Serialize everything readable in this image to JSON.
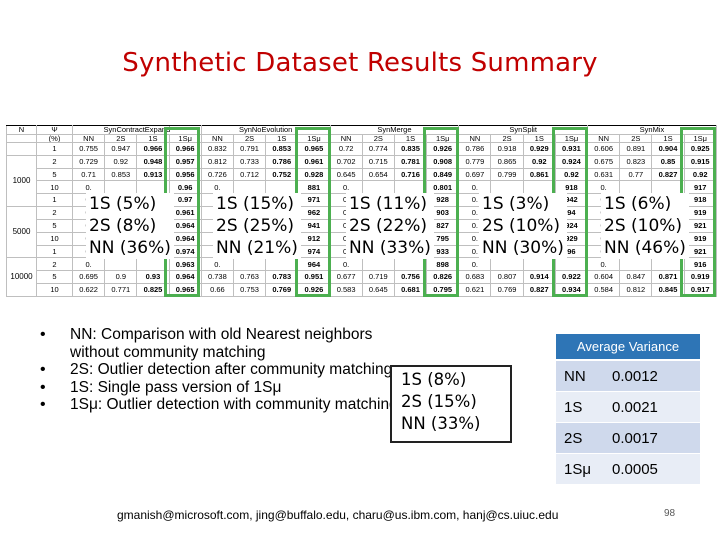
{
  "title": "Synthetic Dataset Results Summary",
  "table": {
    "n_header": "N",
    "psi_header": "Ψ",
    "psi_unit": "(%)",
    "datasets": [
      "SynContractExpand",
      "SynNoEvolution",
      "SynMerge",
      "SynSplit",
      "SynMix"
    ],
    "methods": [
      "NN",
      "2S",
      "1S",
      "1Sμ"
    ],
    "rows": [
      {
        "n": "",
        "psi": "1",
        "cells": [
          "0.755",
          "0.947",
          "0.966",
          "0.966",
          "0.832",
          "0.791",
          "0.853",
          "0.965",
          "0.72",
          "0.774",
          "0.835",
          "0.926",
          "0.786",
          "0.918",
          "0.929",
          "0.931",
          "0.606",
          "0.891",
          "0.904",
          "0.925"
        ]
      },
      {
        "n": "1000",
        "psi": "2",
        "cells": [
          "0.729",
          "0.92",
          "0.948",
          "0.957",
          "0.812",
          "0.733",
          "0.786",
          "0.961",
          "0.702",
          "0.715",
          "0.781",
          "0.908",
          "0.779",
          "0.865",
          "0.92",
          "0.924",
          "0.675",
          "0.823",
          "0.85",
          "0.915"
        ]
      },
      {
        "n": "",
        "psi": "5",
        "cells": [
          "0.71",
          "0.853",
          "0.913",
          "0.956",
          "0.726",
          "0.712",
          "0.752",
          "0.928",
          "0.645",
          "0.654",
          "0.716",
          "0.849",
          "0.697",
          "0.799",
          "0.861",
          "0.92",
          "0.631",
          "0.77",
          "0.827",
          "0.92"
        ]
      },
      {
        "n": "",
        "psi": "10",
        "cells": [
          "0.",
          "",
          "",
          "0.96",
          "0.",
          "",
          "",
          "881",
          "0.",
          "",
          "",
          "0.801",
          "0.",
          "",
          "",
          "918",
          "0.",
          "",
          "",
          "917"
        ]
      },
      {
        "n": "",
        "psi": "1",
        "cells": [
          "0.",
          "",
          "",
          "0.97",
          "0.",
          "",
          "",
          "971",
          "0.",
          "",
          "",
          "928",
          "0.",
          "",
          "",
          "942",
          "0.",
          "",
          "",
          "918"
        ]
      },
      {
        "n": "5000",
        "psi": "2",
        "cells": [
          "0.",
          "",
          "",
          "0.961",
          "0.",
          "",
          "",
          "962",
          "0.",
          "",
          "",
          "903",
          "0.",
          "",
          "",
          "94",
          "0.",
          "",
          "",
          "919"
        ]
      },
      {
        "n": "",
        "psi": "5",
        "cells": [
          "0.",
          "",
          "",
          "0.964",
          "0.",
          "",
          "",
          "941",
          "0.",
          "",
          "",
          "827",
          "0.",
          "",
          "",
          "924",
          "0.",
          "",
          "",
          "921"
        ]
      },
      {
        "n": "",
        "psi": "10",
        "cells": [
          "0.",
          "",
          "",
          "0.964",
          "0.",
          "",
          "",
          "912",
          "0.",
          "",
          "",
          "795",
          "0.",
          "",
          "",
          "929",
          "0.",
          "",
          "",
          "919"
        ]
      },
      {
        "n": "",
        "psi": "1",
        "cells": [
          "0.",
          "",
          "",
          "0.974",
          "0.",
          "",
          "",
          "974",
          "0.",
          "",
          "",
          "933",
          "0.",
          "",
          "",
          "96",
          "0.",
          "",
          "",
          "921"
        ]
      },
      {
        "n": "10000",
        "psi": "2",
        "cells": [
          "0.",
          "",
          "",
          "0.963",
          "0.",
          "",
          "",
          "964",
          "0.",
          "",
          "",
          "898",
          "0.",
          "",
          "",
          "",
          "0.",
          "",
          "",
          "916"
        ]
      },
      {
        "n": "",
        "psi": "5",
        "cells": [
          "0.695",
          "0.9",
          "0.93",
          "0.964",
          "0.738",
          "0.763",
          "0.783",
          "0.951",
          "0.677",
          "0.719",
          "0.756",
          "0.826",
          "0.683",
          "0.807",
          "0.914",
          "0.922",
          "0.604",
          "0.847",
          "0.871",
          "0.919"
        ]
      },
      {
        "n": "",
        "psi": "10",
        "cells": [
          "0.622",
          "0.771",
          "0.825",
          "0.965",
          "0.66",
          "0.753",
          "0.769",
          "0.926",
          "0.583",
          "0.645",
          "0.681",
          "0.795",
          "0.621",
          "0.769",
          "0.827",
          "0.934",
          "0.584",
          "0.812",
          "0.845",
          "0.917"
        ]
      }
    ]
  },
  "overlays": [
    {
      "lines": [
        "1S (5%)",
        "2S (8%)",
        "NN (36%)"
      ]
    },
    {
      "lines": [
        "1S (15%)",
        "2S (25%)",
        "NN (21%)"
      ]
    },
    {
      "lines": [
        "1S (11%)",
        "2S (22%)",
        "NN (33%)"
      ]
    },
    {
      "lines": [
        "1S (3%)",
        "2S (10%)",
        "NN (30%)"
      ]
    },
    {
      "lines": [
        "1S (6%)",
        "2S (10%)",
        "NN (46%)"
      ]
    }
  ],
  "bullets": [
    "NN: Comparison with old Nearest neighbors without community matching",
    "2S: Outlier detection after community matching",
    "1S: Single pass version of 1Sμ",
    "1Sμ: Outlier detection with community matching"
  ],
  "summary_box": {
    "lines": [
      "1S (8%)",
      "2S (15%)",
      "NN (33%)"
    ]
  },
  "variance": {
    "header": "Average Variance",
    "rows": [
      {
        "method": "NN",
        "value": "0.0012"
      },
      {
        "method": "1S",
        "value": "0.0021"
      },
      {
        "method": "2S",
        "value": "0.0017"
      },
      {
        "method": "1Sμ",
        "value": "0.0005"
      }
    ]
  },
  "footer": "gmanish@microsoft.com, jing@buffalo.edu, charu@us.ibm.com, hanj@cs.uiuc.edu",
  "page_number": "98",
  "colors": {
    "title": "#c00000",
    "highlight_box": "#4caf50",
    "table_header": "#2e75b6"
  }
}
